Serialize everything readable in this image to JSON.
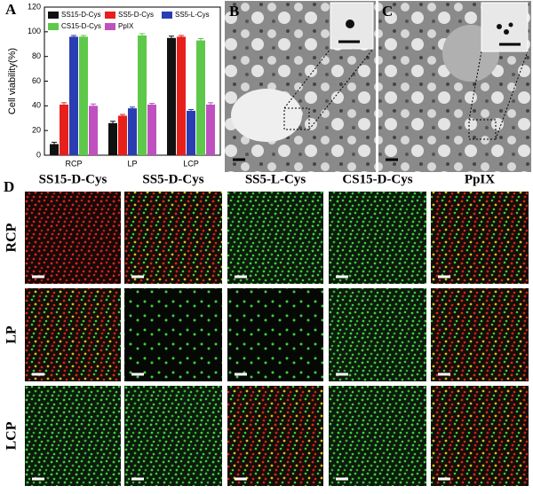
{
  "chart_data": {
    "type": "bar",
    "y_label": "Cell viability(%)",
    "categories": [
      "RCP",
      "LP",
      "LCP"
    ],
    "series": [
      {
        "name": "SS15-D-Cys",
        "color": "#111111",
        "values": [
          9,
          26,
          95
        ],
        "errors": [
          1.5,
          1.5,
          1.5
        ]
      },
      {
        "name": "SS5-D-Cys",
        "color": "#e8201c",
        "values": [
          41,
          32,
          96
        ],
        "errors": [
          1.5,
          1,
          1
        ]
      },
      {
        "name": "SS5-L-Cys",
        "color": "#2a3db3",
        "values": [
          96,
          38,
          36
        ],
        "errors": [
          1,
          1,
          1
        ]
      },
      {
        "name": "CS15-D-Cys",
        "color": "#5ec84a",
        "values": [
          96,
          97,
          93
        ],
        "errors": [
          1,
          1.5,
          1.5
        ]
      },
      {
        "name": "PpIX",
        "color": "#c050c0",
        "values": [
          40,
          41,
          41
        ],
        "errors": [
          1.5,
          1,
          1.5
        ]
      }
    ],
    "ylim": [
      0,
      120
    ],
    "yticks": [
      0,
      20,
      40,
      60,
      80,
      100,
      120
    ],
    "grid": false
  },
  "panels": {
    "a": "A",
    "b": "B",
    "c": "C",
    "d": "D"
  },
  "panel_d": {
    "columns": [
      "SS15-D-Cys",
      "SS5-D-Cys",
      "SS5-L-Cys",
      "CS15-D-Cys",
      "PpIX"
    ],
    "rows": [
      "RCP",
      "LP",
      "LCP"
    ]
  }
}
